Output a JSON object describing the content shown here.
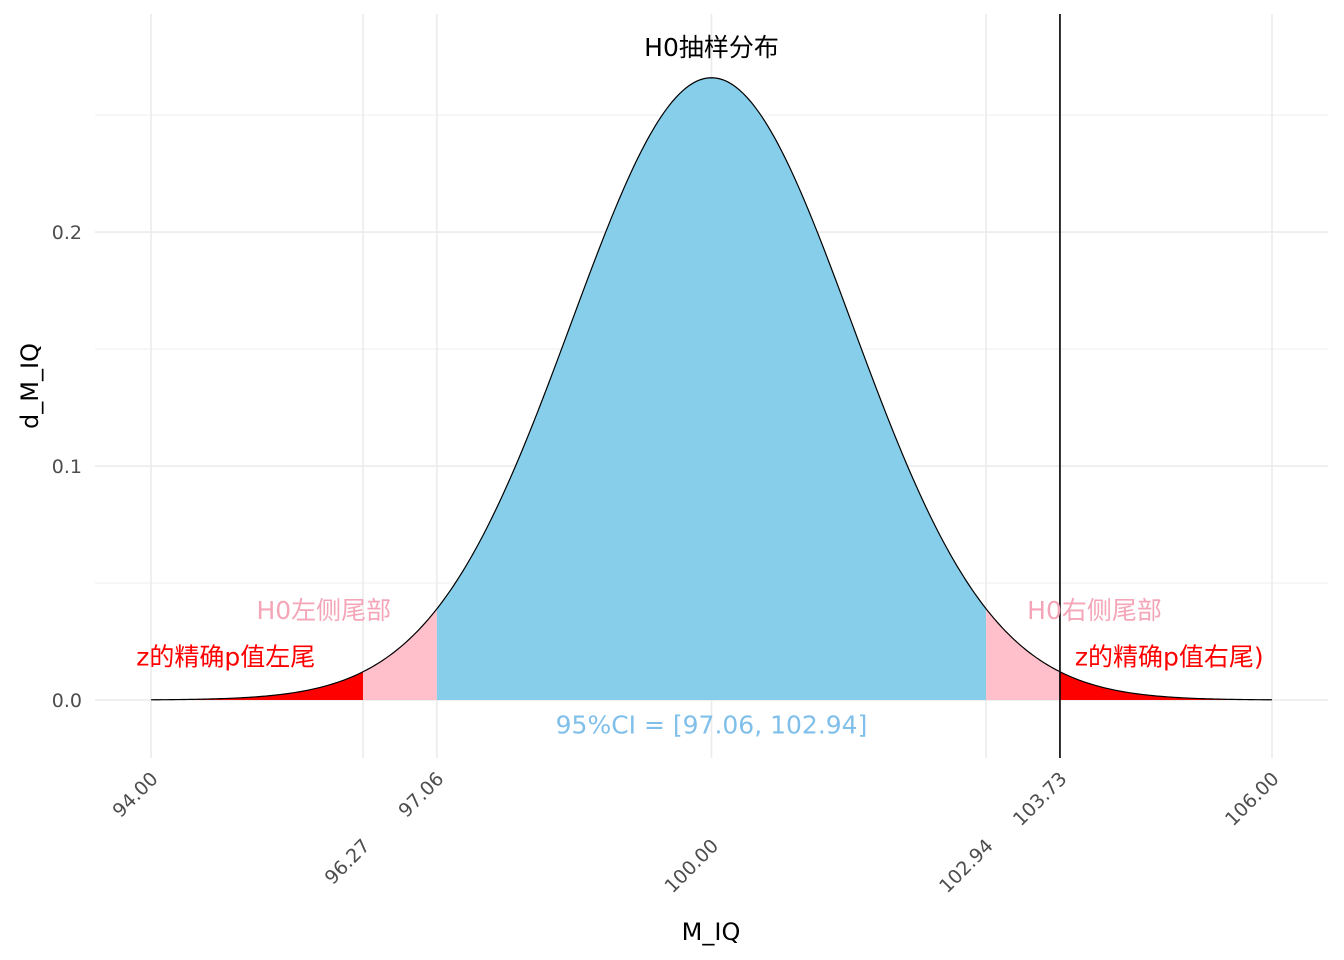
{
  "chart_data": {
    "type": "area",
    "title": "",
    "xlabel": "M_IQ",
    "ylabel": "d_M_IQ",
    "xlim": [
      94,
      106
    ],
    "ylim": [
      0,
      0.265
    ],
    "grid": true,
    "distribution": {
      "kind": "normal",
      "mean": 100,
      "sd": 1.5
    },
    "x_ticks": [
      "94.00",
      "96.27",
      "97.06",
      "100.00",
      "102.94",
      "103.73",
      "106.00"
    ],
    "x_tick_values": [
      94,
      96.27,
      97.06,
      100,
      102.94,
      103.73,
      106
    ],
    "y_ticks": [
      "0.0",
      "0.1",
      "0.2"
    ],
    "y_tick_values": [
      0,
      0.1,
      0.2
    ],
    "regions": [
      {
        "name": "z left tail",
        "from": 94,
        "to": 96.27,
        "color": "#ff0000"
      },
      {
        "name": "H0 left tail",
        "from": 96.27,
        "to": 97.06,
        "color": "#ffc0cb"
      },
      {
        "name": "95% CI",
        "from": 97.06,
        "to": 102.94,
        "color": "#87ceeb"
      },
      {
        "name": "H0 right tail",
        "from": 102.94,
        "to": 103.73,
        "color": "#ffc0cb"
      },
      {
        "name": "z right tail",
        "from": 103.73,
        "to": 106,
        "color": "#ff0000"
      }
    ],
    "vline": {
      "x": 103.73,
      "color": "#000000"
    },
    "annotations": [
      {
        "id": "h0-dist",
        "text": "H0抽样分布",
        "x": 100,
        "y": 0.279,
        "color": "#000000"
      },
      {
        "id": "h0-left-tail",
        "text": "H0左侧尾部",
        "x": 95.85,
        "y": 0.0385,
        "color": "#f4a6b8"
      },
      {
        "id": "h0-right-tail",
        "text": "H0右侧尾部",
        "x": 104.1,
        "y": 0.0385,
        "color": "#f4a6b8"
      },
      {
        "id": "z-left",
        "text": "z的精确p值左尾",
        "x": 94.8,
        "y": 0.0185,
        "color": "#ff0000"
      },
      {
        "id": "z-right",
        "text": "z的精确p值右尾)",
        "x": 104.9,
        "y": 0.0185,
        "color": "#ff0000"
      },
      {
        "id": "ci",
        "text": "95%CI = [97.06, 102.94]",
        "x": 100,
        "y": -0.0105,
        "color": "#7fbfea"
      }
    ]
  }
}
